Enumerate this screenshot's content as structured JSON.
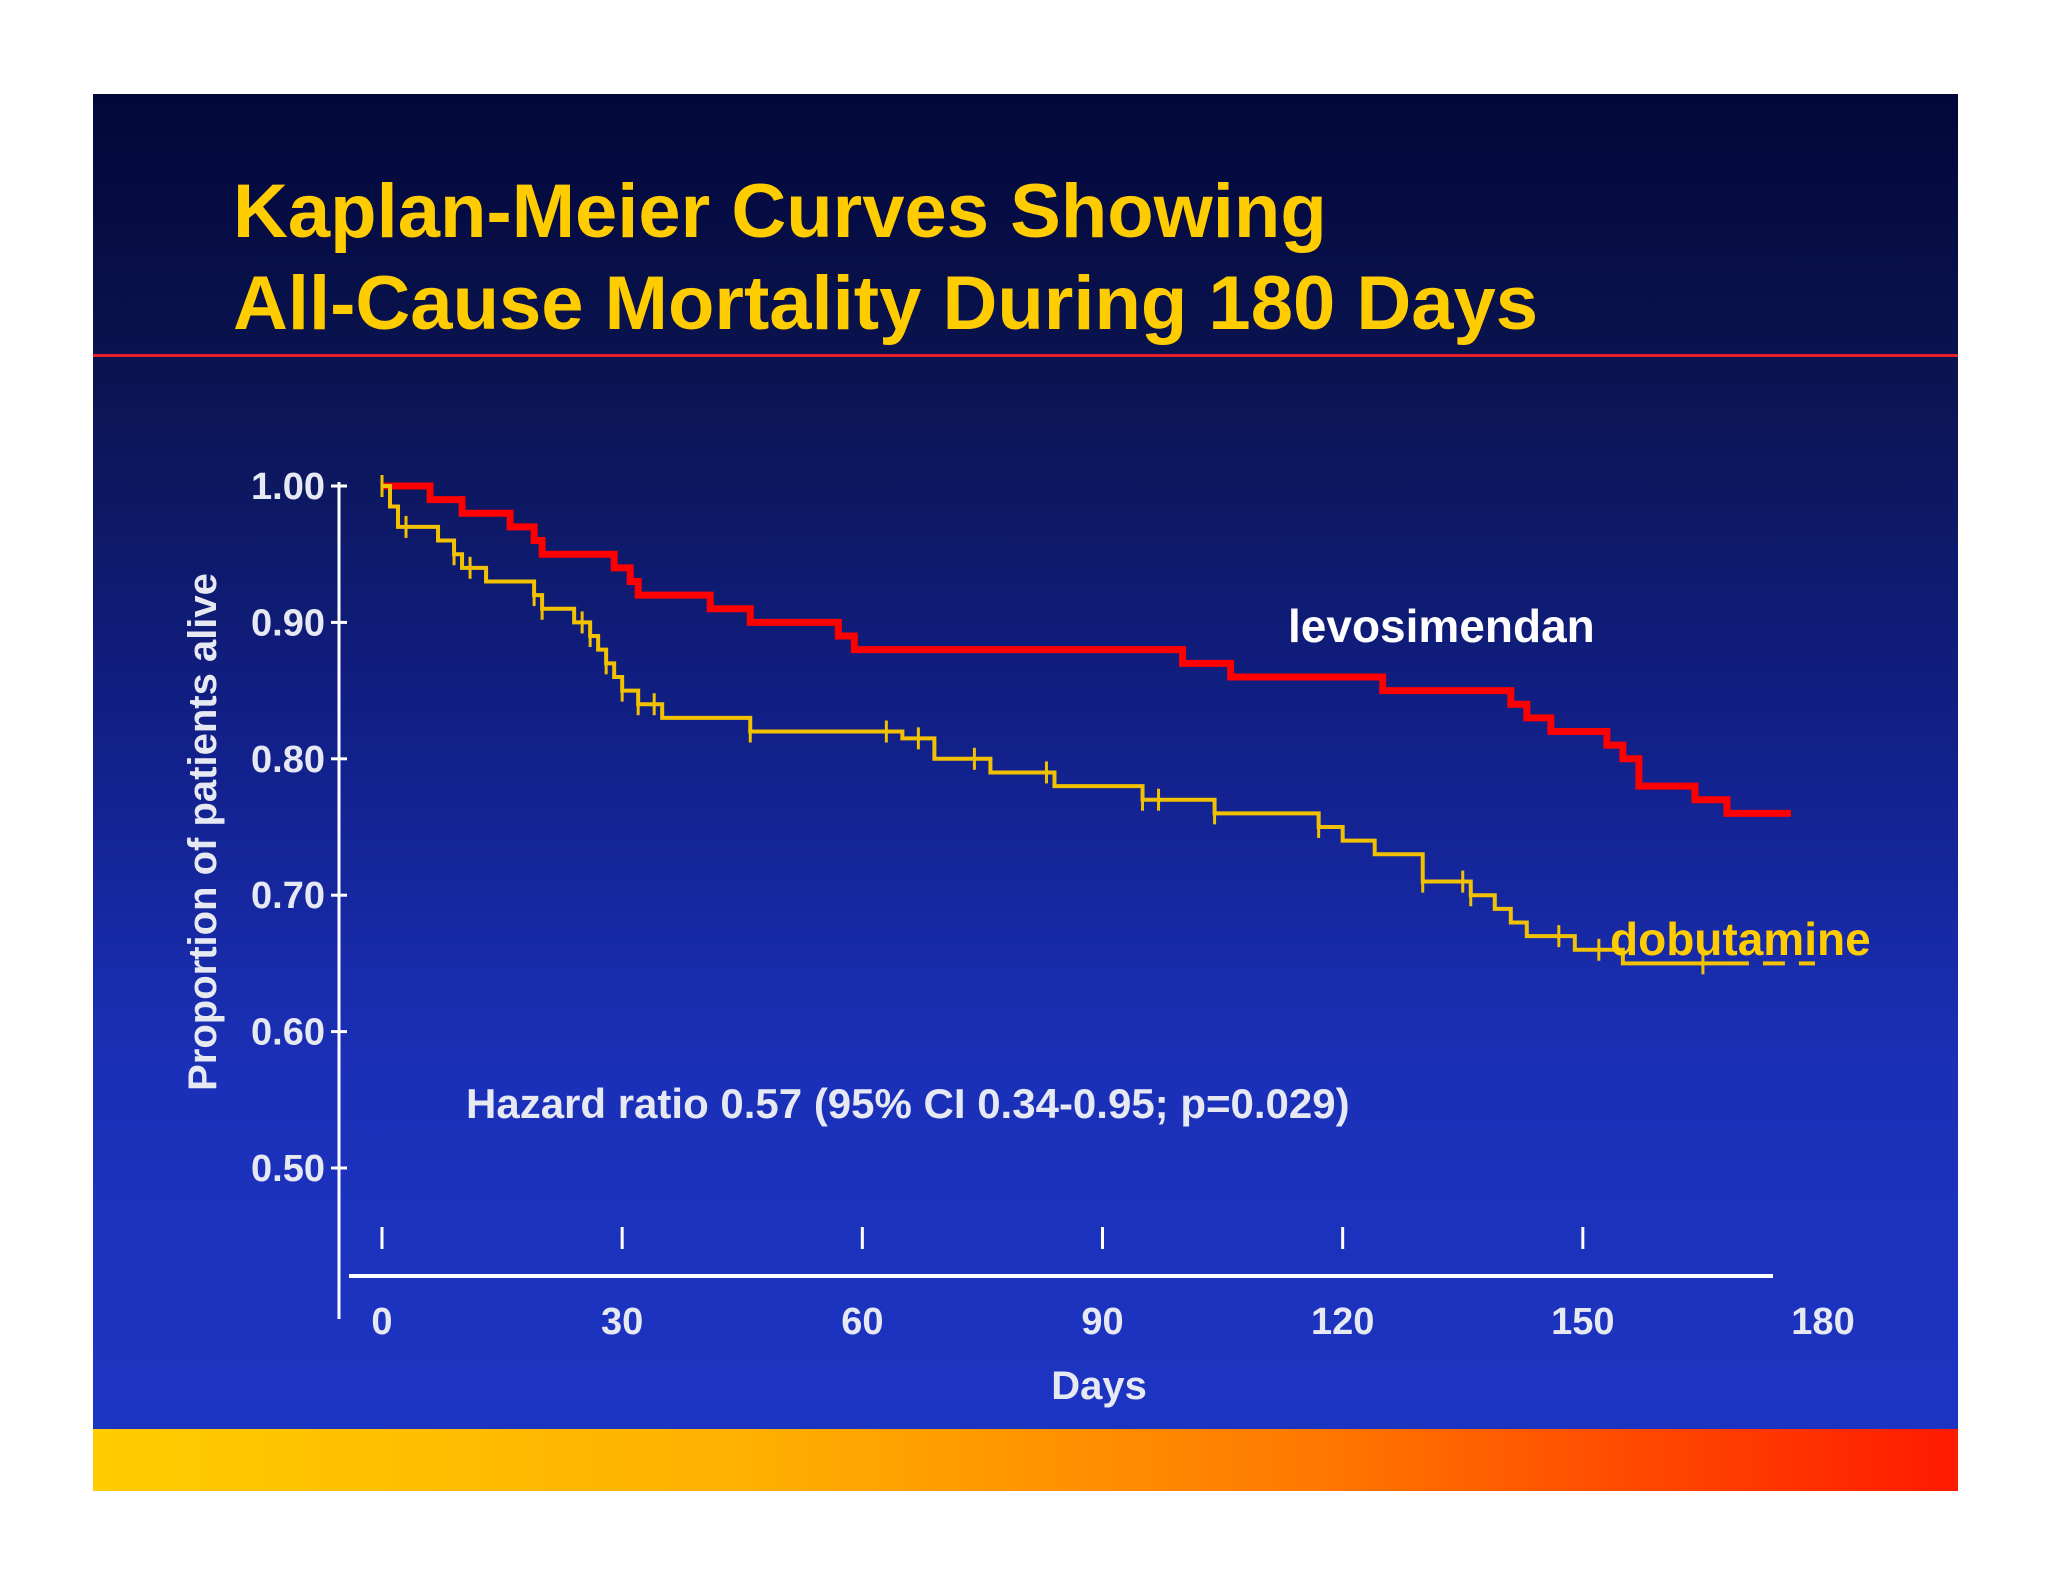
{
  "slide": {
    "title_line1": "Kaplan-Meier Curves Showing",
    "title_line2": "All-Cause Mortality During 180 Days",
    "background_top": "#02073a",
    "background_bottom": "#1c35c4",
    "title_color": "#ffcc00",
    "rule_color": "#e8202a"
  },
  "chart_data": {
    "type": "line",
    "title": "",
    "xlabel": "Days",
    "ylabel": "Proportion of patients alive",
    "xlim": [
      0,
      180
    ],
    "ylim": [
      0.5,
      1.0
    ],
    "x_ticks": [
      "0",
      "30",
      "60",
      "90",
      "120",
      "150",
      "180"
    ],
    "y_ticks": [
      "1.00",
      "0.90",
      "0.80",
      "0.70",
      "0.60",
      "0.50"
    ],
    "grid": false,
    "annotation": "Hazard ratio 0.57 (95% CI 0.34-0.95; p=0.029)",
    "series": [
      {
        "name": "levosimendan",
        "color": "#ff0000",
        "label_color": "#ffffff",
        "step": true,
        "points": [
          [
            0,
            1.0
          ],
          [
            6,
            0.99
          ],
          [
            10,
            0.98
          ],
          [
            16,
            0.97
          ],
          [
            19,
            0.96
          ],
          [
            20,
            0.95
          ],
          [
            29,
            0.94
          ],
          [
            31,
            0.93
          ],
          [
            32,
            0.92
          ],
          [
            41,
            0.91
          ],
          [
            46,
            0.9
          ],
          [
            57,
            0.89
          ],
          [
            59,
            0.88
          ],
          [
            100,
            0.87
          ],
          [
            106,
            0.86
          ],
          [
            125,
            0.85
          ],
          [
            141,
            0.84
          ],
          [
            143,
            0.83
          ],
          [
            146,
            0.82
          ],
          [
            153,
            0.81
          ],
          [
            155,
            0.8
          ],
          [
            157,
            0.78
          ],
          [
            164,
            0.77
          ],
          [
            168,
            0.76
          ],
          [
            176,
            0.76
          ]
        ],
        "censor_days": []
      },
      {
        "name": "dobutamine",
        "color": "#f2c200",
        "label_color": "#ffcc00",
        "step": true,
        "points": [
          [
            0,
            1.0
          ],
          [
            1,
            0.985
          ],
          [
            2,
            0.97
          ],
          [
            7,
            0.96
          ],
          [
            9,
            0.95
          ],
          [
            10,
            0.94
          ],
          [
            13,
            0.93
          ],
          [
            19,
            0.92
          ],
          [
            20,
            0.91
          ],
          [
            24,
            0.9
          ],
          [
            26,
            0.89
          ],
          [
            27,
            0.88
          ],
          [
            28,
            0.87
          ],
          [
            29,
            0.86
          ],
          [
            30,
            0.85
          ],
          [
            32,
            0.84
          ],
          [
            35,
            0.83
          ],
          [
            46,
            0.82
          ],
          [
            65,
            0.815
          ],
          [
            69,
            0.8
          ],
          [
            76,
            0.79
          ],
          [
            84,
            0.78
          ],
          [
            95,
            0.77
          ],
          [
            104,
            0.76
          ],
          [
            117,
            0.75
          ],
          [
            120,
            0.74
          ],
          [
            124,
            0.73
          ],
          [
            130,
            0.71
          ],
          [
            136,
            0.7
          ],
          [
            139,
            0.69
          ],
          [
            141,
            0.68
          ],
          [
            143,
            0.67
          ],
          [
            149,
            0.66
          ],
          [
            155,
            0.65
          ],
          [
            165,
            0.65
          ],
          [
            168,
            0.65
          ]
        ],
        "censor_days": [
          0,
          3,
          9,
          11,
          19,
          20,
          25,
          26,
          28,
          30,
          32,
          34,
          46,
          63,
          67,
          74,
          83,
          95,
          97,
          104,
          117,
          130,
          135,
          136,
          147,
          152,
          165
        ],
        "dashed_tail": [
          [
            168,
            0.65
          ],
          [
            179,
            0.65
          ]
        ]
      }
    ]
  }
}
